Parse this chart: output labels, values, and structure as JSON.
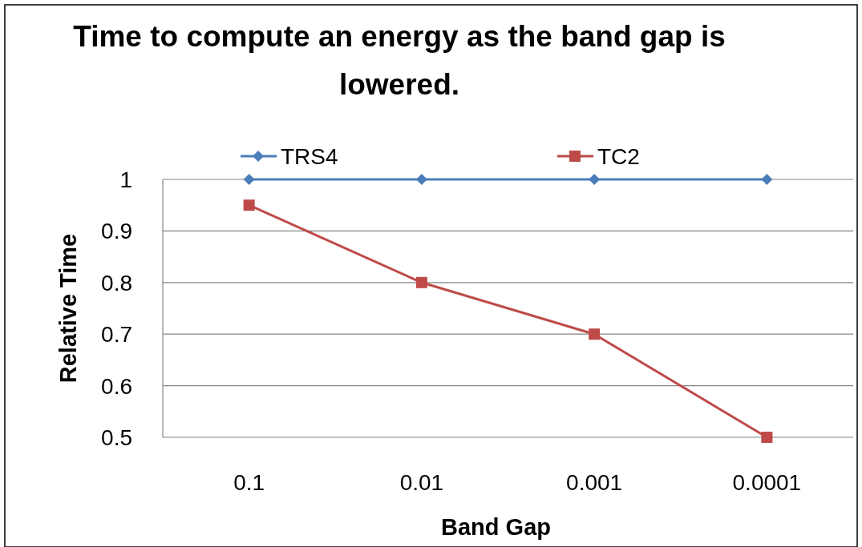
{
  "chart_data": {
    "type": "line",
    "title": "Time to compute an energy as the band gap is lowered.",
    "xlabel": "Band Gap",
    "ylabel": "Relative Time",
    "categories": [
      "0.1",
      "0.01",
      "0.001",
      "0.0001"
    ],
    "series": [
      {
        "name": "TRS4",
        "color": "#4a7ebb",
        "values": [
          1,
          1,
          1,
          1
        ],
        "marker": "diamond"
      },
      {
        "name": "TC2",
        "color": "#be4b48",
        "values": [
          0.95,
          0.8,
          0.7,
          0.5
        ],
        "marker": "square"
      }
    ],
    "ylim": [
      0.5,
      1
    ],
    "yticks": [
      0.5,
      0.6,
      0.7,
      0.8,
      0.9,
      1
    ],
    "grid": "y",
    "legend": "top",
    "line_style": "solid"
  }
}
